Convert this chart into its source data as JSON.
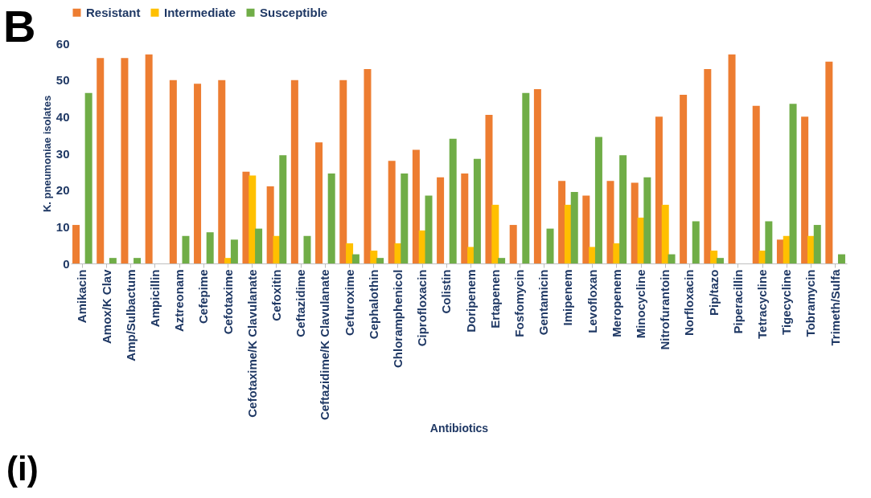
{
  "chart_data": {
    "type": "bar",
    "xlabel": "Antibiotics",
    "ylabel": "K. pneumoniae isolates",
    "annotations": [
      "B",
      "(i)"
    ],
    "categories": [
      "Amikacin",
      "Amox/K Clav",
      "Amp/Sulbactum",
      "Ampicillin",
      "Aztreonam",
      "Cefepime",
      "Cefotaxime",
      "Cefotaxime/K Clavulanate",
      "Cefoxitin",
      "Ceftazidime",
      "Ceftazidime/K Clavulanate",
      "Cefuroxime",
      "Cephalothin",
      "Chloramphenicol",
      "Ciprofloxacin",
      "Colistin",
      "Doripenem",
      "Ertapenen",
      "Fosfomycin",
      "Gentamicin",
      "Imipenem",
      "Levofloxan",
      "Meropenem",
      "Minocycline",
      "Nitrofurantoin",
      "Norfloxacin",
      "Pip/tazo",
      "Piperacillin",
      "Tetracycline",
      "Tigecycline",
      "Tobramycin",
      "Trimeth/Sulfa"
    ],
    "series": [
      {
        "name": "Resistant",
        "color": "#ed7d31",
        "values": [
          10.5,
          56,
          56,
          57,
          50,
          49,
          50,
          25,
          21,
          50,
          33,
          50,
          53,
          28,
          31,
          23.5,
          24.5,
          40.5,
          10.5,
          47.5,
          22.5,
          18.5,
          22.5,
          22,
          40,
          46,
          53,
          57,
          43,
          6.5,
          40,
          55
        ]
      },
      {
        "name": "Intermediate",
        "color": "#ffc000",
        "values": [
          0,
          0,
          0,
          0,
          0,
          0,
          1.5,
          24,
          7.5,
          0,
          0,
          5.5,
          3.5,
          5.5,
          9,
          0,
          4.5,
          16,
          0,
          0,
          16,
          4.5,
          5.5,
          12.5,
          16,
          0,
          3.5,
          0,
          3.5,
          7.5,
          7.5,
          0
        ]
      },
      {
        "name": "Susceptible",
        "color": "#70ad47",
        "values": [
          46.5,
          1.5,
          1.5,
          0,
          7.5,
          8.5,
          6.5,
          9.5,
          29.5,
          7.5,
          24.5,
          2.5,
          1.5,
          24.5,
          18.5,
          34,
          28.5,
          1.5,
          46.5,
          9.5,
          19.5,
          34.5,
          29.5,
          23.5,
          2.5,
          11.5,
          1.5,
          0,
          11.5,
          43.5,
          10.5,
          2.5
        ]
      }
    ],
    "ylim": [
      0,
      60
    ],
    "yticks": [
      0,
      10,
      20,
      30,
      40,
      50,
      60
    ],
    "grid": false,
    "legend": "top"
  }
}
